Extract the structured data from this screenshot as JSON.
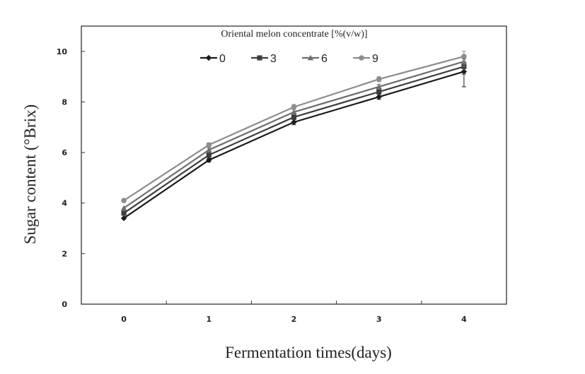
{
  "chart_data": {
    "type": "line",
    "title": "",
    "xlabel": "Fermentation times(days)",
    "ylabel": "Sugar content (°Brix)",
    "x": [
      0,
      1,
      2,
      3,
      4
    ],
    "xticks": [
      "0",
      "1",
      "2",
      "3",
      "4"
    ],
    "xlim": [
      -0.5,
      4.5
    ],
    "ylim": [
      0,
      11
    ],
    "yticks": [
      "0",
      "2",
      "4",
      "6",
      "8",
      "10"
    ],
    "grid": false,
    "legend": {
      "title": "Oriental melon concentrate [%(v/w)]",
      "placement": "top-center"
    },
    "series": [
      {
        "name": "0",
        "marker": "diamond",
        "color": "#1a1a1a",
        "values": [
          3.4,
          5.7,
          7.2,
          8.2,
          9.2
        ],
        "errors": [
          0.05,
          0.08,
          0.1,
          0.1,
          0.6
        ]
      },
      {
        "name": "3",
        "marker": "square",
        "color": "#3d3d3d",
        "values": [
          3.6,
          5.9,
          7.4,
          8.4,
          9.4
        ],
        "errors": [
          0.05,
          0.08,
          0.1,
          0.1,
          0.3
        ]
      },
      {
        "name": "6",
        "marker": "triangle",
        "color": "#6e6e6e",
        "values": [
          3.8,
          6.1,
          7.6,
          8.6,
          9.6
        ],
        "errors": [
          0.05,
          0.08,
          0.1,
          0.1,
          0.2
        ]
      },
      {
        "name": "9",
        "marker": "circle",
        "color": "#8c8c8c",
        "values": [
          4.1,
          6.3,
          7.8,
          8.9,
          9.8
        ],
        "errors": [
          0.05,
          0.08,
          0.1,
          0.1,
          0.2
        ]
      }
    ]
  }
}
